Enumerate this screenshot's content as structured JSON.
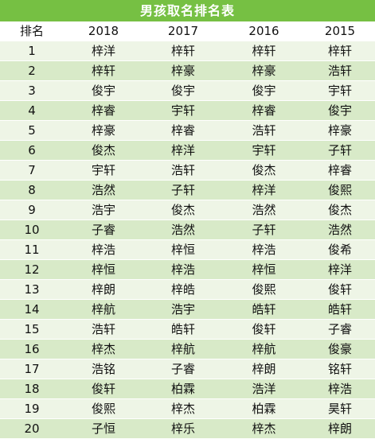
{
  "title": "男孩取名排名表",
  "headers": [
    "排名",
    "2018",
    "2017",
    "2016",
    "2015"
  ],
  "rows": [
    [
      "1",
      "梓洋",
      "梓轩",
      "梓轩",
      "梓轩"
    ],
    [
      "2",
      "梓轩",
      "梓豪",
      "梓豪",
      "浩轩"
    ],
    [
      "3",
      "俊宇",
      "俊宇",
      "俊宇",
      "宇轩"
    ],
    [
      "4",
      "梓睿",
      "宇轩",
      "梓睿",
      "俊宇"
    ],
    [
      "5",
      "梓豪",
      "梓睿",
      "浩轩",
      "梓豪"
    ],
    [
      "6",
      "俊杰",
      "梓洋",
      "宇轩",
      "子轩"
    ],
    [
      "7",
      "宇轩",
      "浩轩",
      "俊杰",
      "梓睿"
    ],
    [
      "8",
      "浩然",
      "子轩",
      "梓洋",
      "俊熙"
    ],
    [
      "9",
      "浩宇",
      "俊杰",
      "浩然",
      "俊杰"
    ],
    [
      "10",
      "子睿",
      "浩然",
      "子轩",
      "浩然"
    ],
    [
      "11",
      "梓浩",
      "梓恒",
      "梓浩",
      "俊希"
    ],
    [
      "12",
      "梓恒",
      "梓浩",
      "梓恒",
      "梓洋"
    ],
    [
      "13",
      "梓朗",
      "梓皓",
      "俊熙",
      "俊轩"
    ],
    [
      "14",
      "梓航",
      "浩宇",
      "皓轩",
      "皓轩"
    ],
    [
      "15",
      "浩轩",
      "皓轩",
      "俊轩",
      "子睿"
    ],
    [
      "16",
      "梓杰",
      "梓航",
      "梓航",
      "俊豪"
    ],
    [
      "17",
      "浩铭",
      "子睿",
      "梓朗",
      "铭轩"
    ],
    [
      "18",
      "俊轩",
      "柏霖",
      "浩洋",
      "梓浩"
    ],
    [
      "19",
      "俊熙",
      "梓杰",
      "柏霖",
      "昊轩"
    ],
    [
      "20",
      "子恒",
      "梓乐",
      "梓杰",
      "梓朗"
    ]
  ]
}
